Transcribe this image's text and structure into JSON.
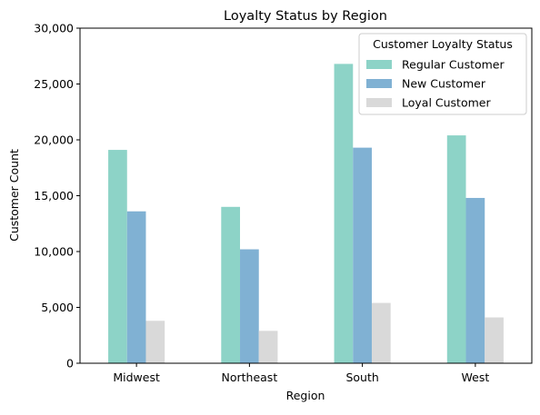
{
  "chart_data": {
    "type": "bar",
    "title": "Loyalty Status by Region",
    "xlabel": "Region",
    "ylabel": "Customer Count",
    "categories": [
      "Midwest",
      "Northeast",
      "South",
      "West"
    ],
    "series": [
      {
        "name": "Regular Customer",
        "color": "#8dd3c7",
        "values": [
          19100,
          14000,
          26800,
          20400
        ]
      },
      {
        "name": "New Customer",
        "color": "#80b1d3",
        "values": [
          13600,
          10200,
          19300,
          14800
        ]
      },
      {
        "name": "Loyal Customer",
        "color": "#d9d9d9",
        "values": [
          3800,
          2900,
          5400,
          4100
        ]
      }
    ],
    "ylim": [
      0,
      30000
    ],
    "yticks": [
      0,
      5000,
      10000,
      15000,
      20000,
      25000,
      30000
    ],
    "ytick_labels": [
      "0",
      "5,000",
      "10,000",
      "15,000",
      "20,000",
      "25,000",
      "30,000"
    ],
    "grid": false,
    "legend": {
      "title": "Customer Loyalty Status",
      "placement": "top-right"
    }
  }
}
